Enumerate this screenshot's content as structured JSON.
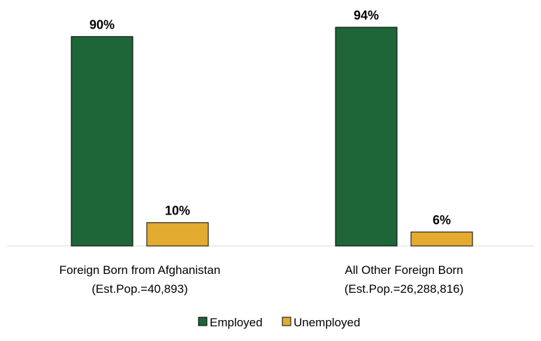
{
  "chart_data": {
    "type": "bar",
    "categories": [
      [
        "Foreign Born from Afghanistan",
        "(Est.Pop.=40,893)"
      ],
      [
        "All Other Foreign Born",
        "(Est.Pop.=26,288,816)"
      ]
    ],
    "series": [
      {
        "name": "Employed",
        "values": [
          90,
          94
        ],
        "labels": [
          "90%",
          "94%"
        ],
        "color": "#1e6537"
      },
      {
        "name": "Unemployed",
        "values": [
          10,
          6
        ],
        "labels": [
          "10%",
          "6%"
        ],
        "color": "#e4ab31"
      }
    ],
    "title": "",
    "xlabel": "",
    "ylabel": "",
    "ylim": [
      0,
      100
    ],
    "grid": false,
    "legend": "bottom"
  }
}
